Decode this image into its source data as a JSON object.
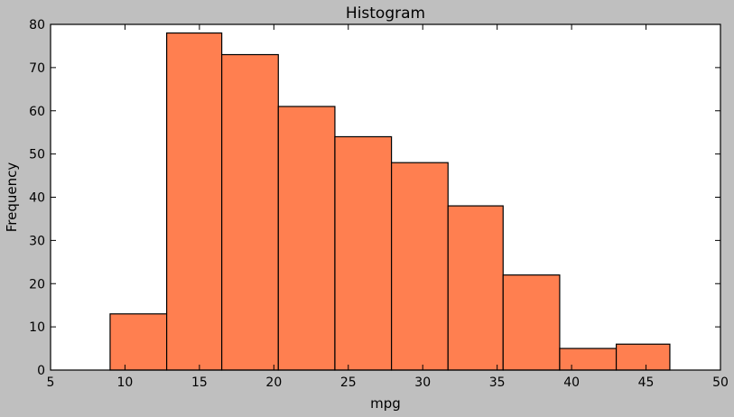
{
  "chart_data": {
    "type": "bar",
    "title": "Histogram",
    "xlabel": "mpg",
    "ylabel": "Frequency",
    "xlim": [
      5,
      50
    ],
    "ylim": [
      0,
      80
    ],
    "x_ticks": [
      5,
      10,
      15,
      20,
      25,
      30,
      35,
      40,
      45,
      50
    ],
    "y_ticks": [
      0,
      10,
      20,
      30,
      40,
      50,
      60,
      70,
      80
    ],
    "bins": [
      {
        "start": 9.0,
        "end": 12.8,
        "value": 13
      },
      {
        "start": 12.8,
        "end": 16.5,
        "value": 78
      },
      {
        "start": 16.5,
        "end": 20.3,
        "value": 73
      },
      {
        "start": 20.3,
        "end": 24.1,
        "value": 61
      },
      {
        "start": 24.1,
        "end": 27.9,
        "value": 54
      },
      {
        "start": 27.9,
        "end": 31.7,
        "value": 48
      },
      {
        "start": 31.7,
        "end": 35.4,
        "value": 38
      },
      {
        "start": 35.4,
        "end": 39.2,
        "value": 22
      },
      {
        "start": 39.2,
        "end": 43.0,
        "value": 5
      },
      {
        "start": 43.0,
        "end": 46.6,
        "value": 6
      }
    ],
    "bar_color": "#ff7f50",
    "edge_color": "#000000",
    "grid": false,
    "legend": "none"
  }
}
